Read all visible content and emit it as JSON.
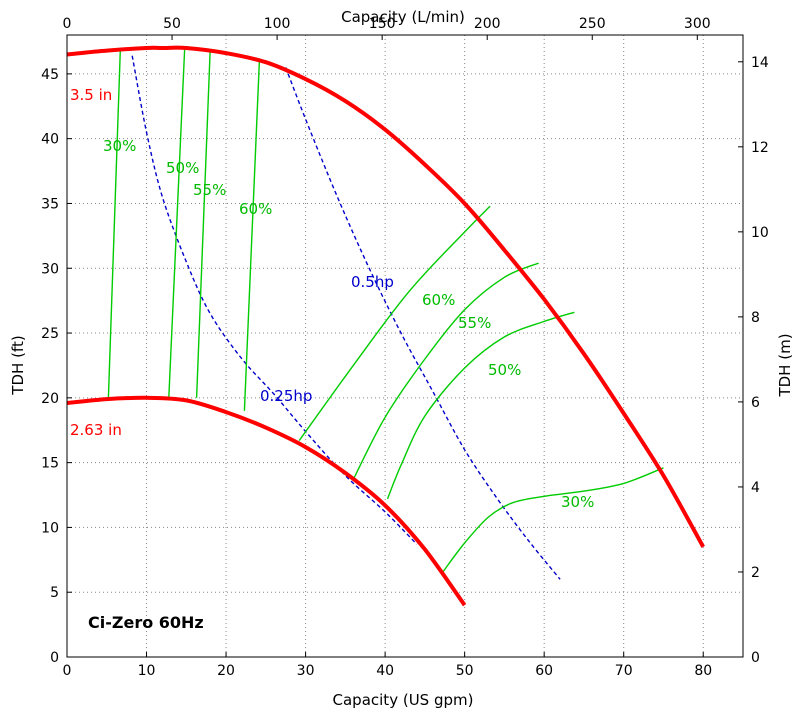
{
  "chart_data": {
    "type": "line",
    "title": "Ci-Zero 60Hz",
    "xlabel": "Capacity (US gpm)",
    "ylabel": "TDH (ft)",
    "x2label": "Capacity (L/min)",
    "y2label": "TDH (m)",
    "xlim": [
      0,
      85
    ],
    "ylim": [
      0,
      48
    ],
    "x2lim": [
      0,
      321.75
    ],
    "y2lim": [
      0,
      14.63
    ],
    "xticks": [
      0,
      10,
      20,
      30,
      40,
      50,
      60,
      70,
      80
    ],
    "yticks": [
      0,
      5,
      10,
      15,
      20,
      25,
      30,
      35,
      40,
      45
    ],
    "x2ticks": [
      0,
      50,
      100,
      150,
      200,
      250,
      300
    ],
    "y2ticks": [
      0,
      2,
      4,
      6,
      8,
      10,
      12,
      14
    ],
    "grid": true,
    "colors": {
      "impeller": "#ff0000",
      "efficiency": "#00cc00",
      "power": "#0000cc"
    },
    "impeller_curves": [
      {
        "name": "3.5 in",
        "x": [
          0,
          5,
          10,
          12,
          15,
          20,
          25,
          30,
          35,
          40,
          45,
          50,
          55,
          60,
          65,
          70,
          75,
          80
        ],
        "y": [
          46.5,
          46.8,
          47.0,
          47.0,
          47.0,
          46.6,
          45.9,
          44.6,
          42.9,
          40.7,
          38.0,
          35.0,
          31.4,
          27.6,
          23.4,
          18.8,
          14.0,
          8.5
        ]
      },
      {
        "name": "2.63 in",
        "x": [
          0,
          5,
          10,
          15,
          20,
          25,
          30,
          35,
          40,
          45,
          50
        ],
        "y": [
          19.6,
          19.9,
          20.0,
          19.8,
          18.9,
          17.7,
          16.2,
          14.2,
          11.7,
          8.3,
          4.0
        ]
      }
    ],
    "efficiency_lines": [
      {
        "name": "30%",
        "x": [
          5.2,
          6.7
        ],
        "y": [
          20.0,
          46.8
        ]
      },
      {
        "name": "50%",
        "x": [
          12.8,
          14.8
        ],
        "y": [
          20.0,
          47.0
        ]
      },
      {
        "name": "55%",
        "x": [
          16.3,
          18.0
        ],
        "y": [
          20.0,
          46.9
        ]
      },
      {
        "name": "60%",
        "x": [
          22.3,
          24.2
        ],
        "y": [
          19.0,
          46.2
        ]
      },
      {
        "name": "60%",
        "x": [
          29.2,
          36.0,
          43.0,
          50.0,
          53.2
        ],
        "y": [
          16.7,
          22.5,
          28.2,
          32.8,
          34.8
        ]
      },
      {
        "name": "55%",
        "x": [
          36.0,
          40.0,
          45.0,
          50.0,
          55.0,
          59.3
        ],
        "y": [
          13.7,
          18.5,
          23.0,
          26.8,
          29.3,
          30.4
        ]
      },
      {
        "name": "50%",
        "x": [
          40.3,
          42.0,
          45.0,
          50.0,
          55.0,
          60.0,
          63.8
        ],
        "y": [
          12.2,
          14.8,
          18.6,
          22.3,
          24.7,
          25.9,
          26.6
        ]
      },
      {
        "name": "30%",
        "x": [
          47.3,
          50.0,
          53.0,
          56.0,
          60.0,
          65.0,
          70.0,
          75.0
        ],
        "y": [
          6.6,
          8.8,
          10.8,
          11.9,
          12.4,
          12.8,
          13.4,
          14.6
        ]
      }
    ],
    "power_curves": [
      {
        "name": "0.25hp",
        "x": [
          8.2,
          10.0,
          12.0,
          15.0,
          18.0,
          22.0,
          26.0,
          30.0,
          35.0,
          40.0,
          44.0
        ],
        "y": [
          46.4,
          40.5,
          35.5,
          30.5,
          26.5,
          23.0,
          20.3,
          17.4,
          14.0,
          11.2,
          8.7
        ]
      },
      {
        "name": "0.5hp",
        "x": [
          27.5,
          30.0,
          34.0,
          38.0,
          42.0,
          46.0,
          50.0,
          54.0,
          58.0,
          62.0
        ],
        "y": [
          45.5,
          41.5,
          35.5,
          30.0,
          25.0,
          20.5,
          16.0,
          12.3,
          9.0,
          6.0
        ]
      }
    ],
    "labels": {
      "imp_3_5": "3.5 in",
      "imp_2_63": "2.63 in",
      "eff_30_left": "30%",
      "eff_50_left": "50%",
      "eff_55_left": "55%",
      "eff_60_left": "60%",
      "eff_60_right": "60%",
      "eff_55_right": "55%",
      "eff_50_right": "50%",
      "eff_30_right": "30%",
      "hp_025": "0.25hp",
      "hp_05": "0.5hp"
    }
  }
}
